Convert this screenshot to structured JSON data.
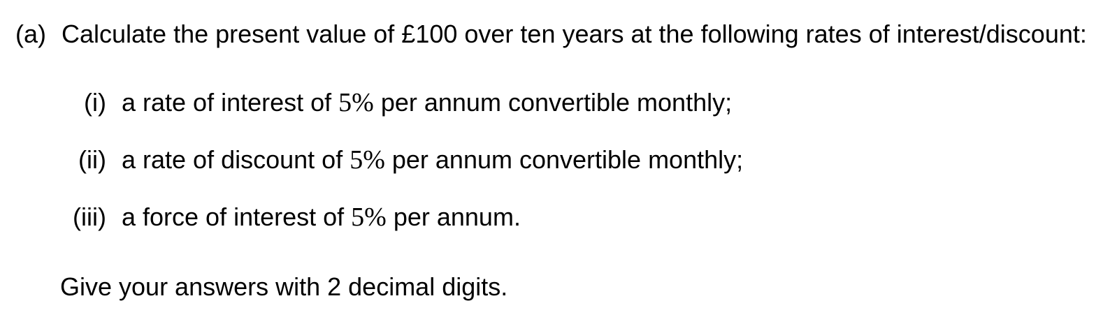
{
  "question": {
    "label": "(a)",
    "text": "Calculate the present value of £100 over ten years at the following rates of interest/discount:",
    "items": [
      {
        "label": "(i)",
        "before": "a rate of interest of ",
        "rate": "5%",
        "after": " per annum convertible monthly;"
      },
      {
        "label": "(ii)",
        "before": "a rate of discount of ",
        "rate": "5%",
        "after": " per annum convertible monthly;"
      },
      {
        "label": "(iii)",
        "before": "a force of interest of ",
        "rate": "5%",
        "after": " per annum."
      }
    ],
    "instruction": "Give your answers with 2 decimal digits."
  }
}
